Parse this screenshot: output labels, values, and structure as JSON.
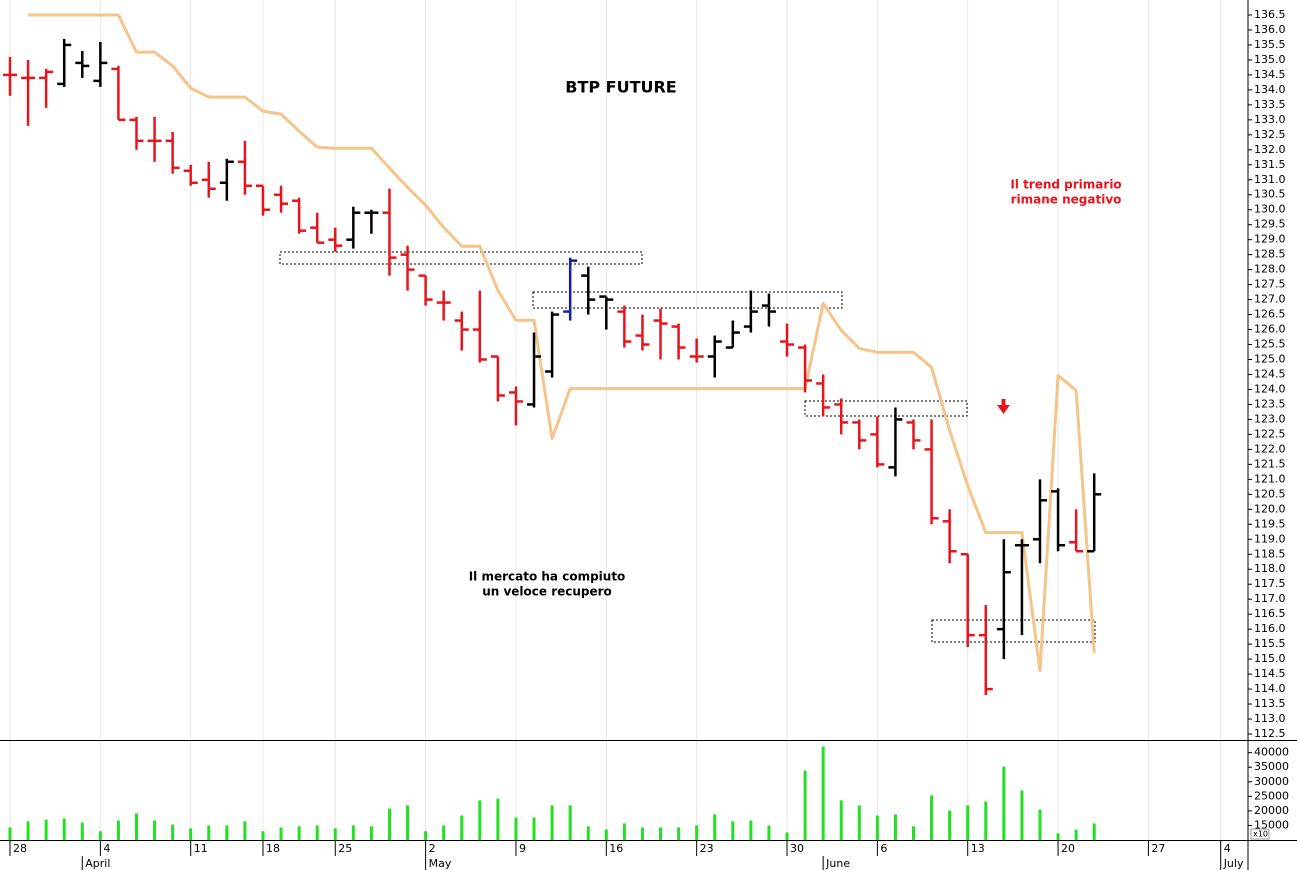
{
  "chart_data": {
    "type": "ohlc",
    "title": "BTP FUTURE",
    "annotations": [
      "Il mercato ha compiuto",
      "un veloce recupero",
      "Il trend primario",
      "rimane negativo"
    ],
    "categories": [
      "28",
      null,
      null,
      null,
      null,
      "4",
      null,
      null,
      null,
      null,
      "11",
      null,
      null,
      null,
      "18",
      null,
      null,
      null,
      "25",
      null,
      null,
      null,
      null,
      "2",
      null,
      null,
      null,
      null,
      "9",
      null,
      null,
      null,
      null,
      "16",
      null,
      null,
      null,
      null,
      "23",
      null,
      null,
      null,
      null,
      "30",
      null,
      null,
      null,
      null,
      "6",
      null,
      null,
      null,
      null,
      "13",
      null,
      null,
      null,
      null,
      "20",
      null,
      null,
      null,
      null,
      "27",
      null,
      null,
      null,
      "4",
      null
    ],
    "month_labels": [
      null,
      null,
      null,
      null,
      "April",
      null,
      null,
      null,
      null,
      null,
      null,
      null,
      null,
      null,
      null,
      null,
      null,
      null,
      null,
      null,
      null,
      null,
      null,
      "May",
      null,
      null,
      null,
      null,
      null,
      null,
      null,
      null,
      null,
      null,
      null,
      null,
      null,
      null,
      null,
      null,
      null,
      null,
      null,
      null,
      null,
      "June",
      null,
      null,
      null,
      null,
      null,
      null,
      null,
      null,
      null,
      null,
      null,
      null,
      null,
      null,
      null,
      null,
      null,
      null,
      null,
      null,
      null,
      "July",
      null
    ],
    "open": [
      134.5,
      134.4,
      134.4,
      134.2,
      134.9,
      134.3,
      134.7,
      133.0,
      132.3,
      132.3,
      131.3,
      131.0,
      130.9,
      131.6,
      130.8,
      130.5,
      130.3,
      129.4,
      129.0,
      129.0,
      129.9,
      129.9,
      128.5,
      127.8,
      126.9,
      126.3,
      126.0,
      125.1,
      123.9,
      123.5,
      124.6,
      126.6,
      127.8,
      127.1,
      126.6,
      125.8,
      126.3,
      126.1,
      125.1,
      125.1,
      125.4,
      126.1,
      126.8,
      125.6,
      125.4,
      124.2,
      123.5,
      122.9,
      122.5,
      121.4,
      122.9,
      122.0,
      119.6,
      118.5,
      115.8,
      116.0,
      118.8,
      119.0,
      120.6,
      118.9,
      118.6,
      null,
      null,
      null,
      null,
      null,
      null,
      null,
      null
    ],
    "high": [
      135.1,
      135.0,
      134.7,
      135.7,
      135.3,
      135.6,
      134.8,
      133.1,
      133.1,
      132.6,
      131.5,
      131.6,
      131.7,
      132.3,
      130.8,
      130.8,
      130.4,
      129.9,
      129.4,
      130.1,
      130.0,
      130.7,
      128.8,
      127.8,
      127.3,
      126.6,
      127.3,
      125.1,
      124.1,
      125.9,
      126.6,
      128.4,
      128.1,
      127.1,
      126.8,
      126.5,
      126.7,
      126.2,
      125.7,
      125.8,
      126.3,
      127.3,
      127.2,
      126.2,
      125.5,
      124.5,
      123.7,
      123.0,
      123.1,
      123.4,
      123.0,
      123.0,
      120.0,
      118.5,
      116.8,
      119.0,
      119.0,
      121.0,
      120.7,
      120.0,
      121.2,
      null,
      null,
      null,
      null,
      null,
      null,
      null,
      null
    ],
    "low": [
      133.8,
      132.8,
      133.4,
      134.1,
      134.4,
      134.1,
      133.0,
      132.0,
      131.6,
      131.2,
      130.8,
      130.4,
      130.3,
      130.5,
      129.8,
      129.9,
      129.2,
      128.9,
      128.6,
      128.7,
      129.2,
      127.8,
      127.3,
      126.8,
      126.3,
      125.3,
      124.9,
      123.6,
      122.8,
      123.4,
      124.4,
      126.3,
      126.5,
      126.0,
      125.4,
      125.3,
      125.0,
      125.0,
      124.9,
      124.4,
      125.4,
      125.9,
      126.1,
      125.1,
      123.9,
      123.1,
      122.5,
      122.0,
      121.4,
      121.1,
      122.0,
      119.5,
      118.2,
      115.4,
      113.8,
      115.0,
      115.8,
      118.2,
      118.6,
      118.6,
      118.6,
      null,
      null,
      null,
      null,
      null,
      null,
      null,
      null
    ],
    "close": [
      134.5,
      134.4,
      134.6,
      135.5,
      134.8,
      134.9,
      133.0,
      132.3,
      132.3,
      131.4,
      130.9,
      130.7,
      131.6,
      130.8,
      130.0,
      130.2,
      129.3,
      128.9,
      128.8,
      129.9,
      129.9,
      128.4,
      128.0,
      127.0,
      126.9,
      126.0,
      125.0,
      123.8,
      123.6,
      125.1,
      126.5,
      128.3,
      127.0,
      127.0,
      125.6,
      125.5,
      126.2,
      125.4,
      125.1,
      125.6,
      125.9,
      126.6,
      126.6,
      125.5,
      124.3,
      123.4,
      122.9,
      122.3,
      121.5,
      123.0,
      122.3,
      119.7,
      118.6,
      115.8,
      114.0,
      117.9,
      118.8,
      120.3,
      118.8,
      118.6,
      120.5,
      null,
      null,
      null,
      null,
      null,
      null,
      null,
      null
    ],
    "colors": [
      "#e8141c",
      "#e8141c",
      "#e8141c",
      "#000000",
      "#000000",
      "#000000",
      "#e8141c",
      "#e8141c",
      "#e8141c",
      "#e8141c",
      "#e8141c",
      "#e8141c",
      "#000000",
      "#e8141c",
      "#e8141c",
      "#e8141c",
      "#e8141c",
      "#e8141c",
      "#e8141c",
      "#000000",
      "#000000",
      "#e8141c",
      "#e8141c",
      "#e8141c",
      "#e8141c",
      "#e8141c",
      "#e8141c",
      "#e8141c",
      "#e8141c",
      "#000000",
      "#000000",
      "#1a1aa8",
      "#000000",
      "#000000",
      "#e8141c",
      "#e8141c",
      "#e8141c",
      "#e8141c",
      "#e8141c",
      "#000000",
      "#000000",
      "#000000",
      "#000000",
      "#e8141c",
      "#e8141c",
      "#e8141c",
      "#e8141c",
      "#e8141c",
      "#e8141c",
      "#000000",
      "#e8141c",
      "#e8141c",
      "#e8141c",
      "#e8141c",
      "#e8141c",
      "#000000",
      "#000000",
      "#000000",
      "#000000",
      "#e8141c",
      "#000000",
      null,
      null,
      null,
      null,
      null,
      null,
      null,
      null
    ],
    "overlay": {
      "color": "#f5c48a",
      "values": [
        null,
        136.5,
        136.5,
        136.5,
        136.5,
        136.5,
        136.5,
        135.26,
        135.26,
        134.8,
        134.06,
        133.76,
        133.76,
        133.76,
        133.29,
        133.19,
        132.62,
        132.09,
        132.05,
        132.05,
        132.05,
        131.39,
        130.75,
        130.15,
        129.41,
        128.78,
        128.78,
        127.31,
        126.31,
        126.31,
        122.36,
        124.03,
        124.03,
        124.03,
        124.03,
        124.03,
        124.03,
        124.03,
        124.03,
        124.03,
        124.03,
        124.03,
        124.03,
        124.03,
        124.03,
        126.87,
        125.97,
        125.37,
        125.24,
        125.24,
        125.24,
        124.74,
        122.63,
        120.79,
        119.22,
        119.22,
        119.22,
        114.61,
        124.47,
        123.97,
        115.21,
        null,
        null,
        null,
        null,
        null,
        null,
        null,
        null
      ]
    },
    "ylim": [
      112.3,
      137.0
    ],
    "yticks": [
      112.5,
      {
        "value": 113,
        "label": "113.0"
      },
      113.5,
      {
        "value": 114,
        "label": "114.0"
      },
      114.5,
      {
        "value": 115,
        "label": "115.0"
      },
      115.5,
      {
        "value": 116,
        "label": "116.0"
      },
      116.5,
      {
        "value": 117,
        "label": "117.0"
      },
      117.5,
      {
        "value": 118,
        "label": "118.0"
      },
      118.5,
      {
        "value": 119,
        "label": "119.0"
      },
      119.5,
      {
        "value": 120,
        "label": "120.0"
      },
      120.5,
      {
        "value": 121,
        "label": "121.0"
      },
      121.5,
      {
        "value": 122,
        "label": "122.0"
      },
      122.5,
      {
        "value": 123,
        "label": "123.0"
      },
      123.5,
      {
        "value": 124,
        "label": "124.0"
      },
      124.5,
      {
        "value": 125,
        "label": "125.0"
      },
      125.5,
      {
        "value": 126,
        "label": "126.0"
      },
      126.5,
      {
        "value": 127,
        "label": "127.0"
      },
      127.5,
      {
        "value": 128,
        "label": "128.0"
      },
      128.5,
      {
        "value": 129,
        "label": "129.0"
      },
      129.5,
      {
        "value": 130,
        "label": "130.0"
      },
      130.5,
      {
        "value": 131,
        "label": "131.0"
      },
      131.5,
      {
        "value": 132,
        "label": "132.0"
      },
      132.5,
      {
        "value": 133,
        "label": "133.0"
      },
      133.5,
      {
        "value": 134,
        "label": "134.0"
      },
      134.5,
      {
        "value": 135,
        "label": "135.0"
      },
      135.5,
      {
        "value": 136,
        "label": "136.0"
      },
      136.5
    ],
    "volume": {
      "type": "bar",
      "color": "#22e022",
      "unit_label": "x10",
      "values": [
        14300,
        16400,
        17000,
        17400,
        16000,
        13000,
        16700,
        19100,
        16700,
        15300,
        14000,
        15000,
        15000,
        16400,
        13000,
        14300,
        14700,
        15000,
        14000,
        15000,
        14700,
        20800,
        21900,
        13000,
        15000,
        18400,
        23600,
        24200,
        17700,
        17700,
        21900,
        21900,
        14700,
        13600,
        15700,
        14300,
        14300,
        14300,
        15000,
        18800,
        16400,
        16700,
        15000,
        12600,
        33800,
        42100,
        23600,
        21900,
        18400,
        18800,
        14700,
        25300,
        20100,
        21900,
        23200,
        35200,
        27000,
        20500,
        12300,
        13600,
        15700,
        null,
        null,
        null,
        null,
        null,
        null,
        null,
        null
      ],
      "ylim": [
        10000,
        44000
      ],
      "yticks": [
        15000,
        20000,
        25000,
        30000,
        35000,
        40000
      ]
    }
  }
}
